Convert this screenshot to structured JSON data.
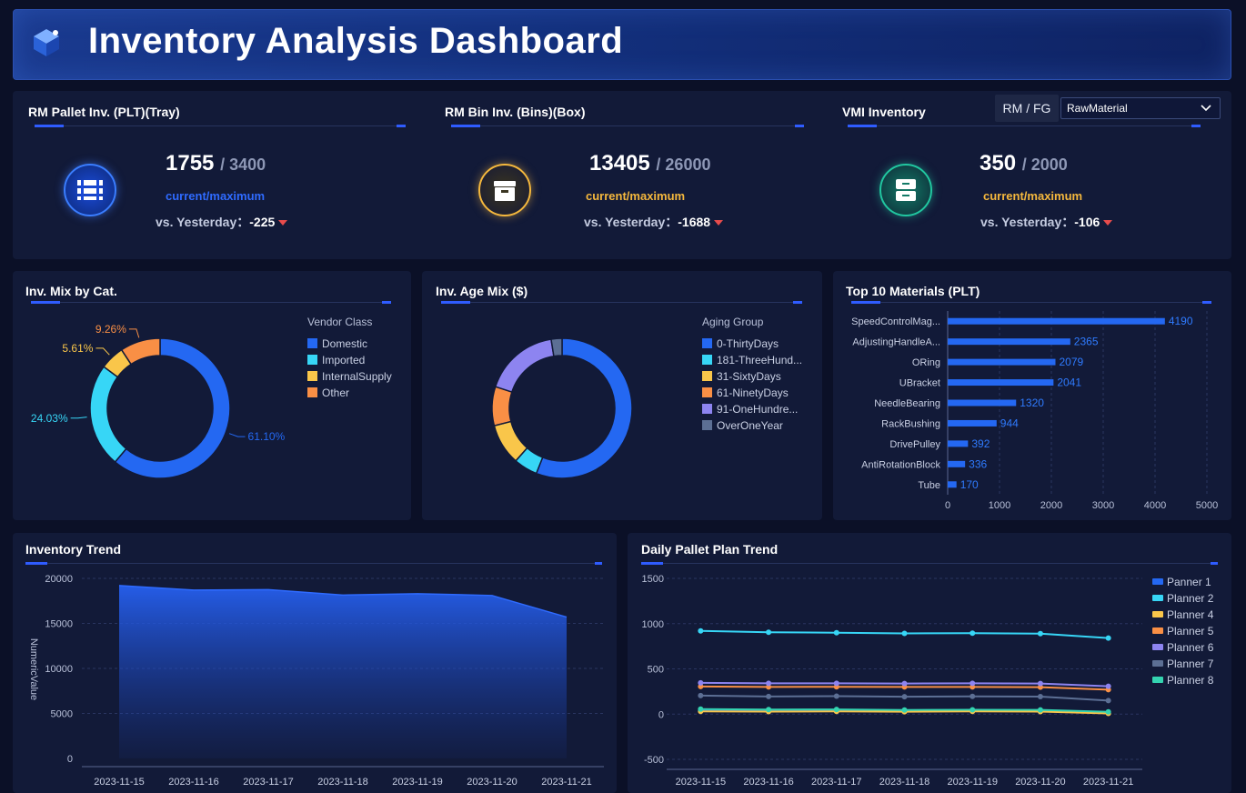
{
  "header": {
    "title": "Inventory Analysis Dashboard",
    "logo_icon": "cube-icon"
  },
  "kpis": [
    {
      "title": "RM Pallet Inv. (PLT)(Tray)",
      "current": "1755",
      "maximum": "/ 3400",
      "sub": "current/maximum",
      "vs_label": "vs. Yesterday：",
      "vs_value": "-225",
      "color": "#2f6bff",
      "icon": "pallet-icon"
    },
    {
      "title": "RM Bin Inv. (Bins)(Box)",
      "current": "13405",
      "maximum": "/ 26000",
      "sub": "current/maximum",
      "vs_label": "vs. Yesterday：",
      "vs_value": "-1688",
      "color": "#f5b83d",
      "icon": "box-icon"
    },
    {
      "title": "VMI Inventory",
      "current": "350",
      "maximum": "/ 2000",
      "sub": "current/maximum",
      "vs_label": "vs. Yesterday：",
      "vs_value": "-106",
      "color": "#21c7a0",
      "icon": "cabinet-icon"
    }
  ],
  "filter": {
    "label": "RM / FG",
    "selected": "RawMaterial"
  },
  "colors": {
    "blue": "#2468f2",
    "cyan": "#37d6f6",
    "yellow": "#f9c64a",
    "orange": "#f98f45",
    "purple": "#8d84f0",
    "slate": "#5c6f94",
    "teal": "#34d3b0"
  },
  "chart_data": [
    {
      "id": "mix",
      "type": "pie",
      "title": "Inv. Mix by Cat.",
      "legend_title": "Vendor Class",
      "labels": [
        "Domestic",
        "Imported",
        "InternalSupply",
        "Other"
      ],
      "values": [
        61.1,
        24.03,
        5.61,
        9.26
      ],
      "value_labels": [
        "61.10%",
        "24.03%",
        "5.61%",
        "9.26%"
      ],
      "colors": [
        "#2468f2",
        "#37d6f6",
        "#f9c64a",
        "#f98f45"
      ],
      "legend_placement": "top-right"
    },
    {
      "id": "age",
      "type": "pie",
      "title": "Inv. Age Mix ($)",
      "legend_title": "Aging Group",
      "labels": [
        "0-ThirtyDays",
        "181-ThreeHund...",
        "31-SixtyDays",
        "61-NinetyDays",
        "91-OneHundre...",
        "OverOneYear"
      ],
      "values": [
        56,
        5.5,
        9.5,
        9,
        17.5,
        2.5
      ],
      "colors": [
        "#2468f2",
        "#37d6f6",
        "#f9c64a",
        "#f98f45",
        "#8d84f0",
        "#5c6f94"
      ],
      "legend_placement": "top-right"
    },
    {
      "id": "top10",
      "type": "bar",
      "title": "Top 10 Materials (PLT)",
      "orientation": "horizontal",
      "categories": [
        "SpeedControlMag...",
        "AdjustingHandleA...",
        "ORing",
        "UBracket",
        "NeedleBearing",
        "RackBushing",
        "DrivePulley",
        "AntiRotationBlock",
        "Tube"
      ],
      "values": [
        4190,
        2365,
        2079,
        2041,
        1320,
        944,
        392,
        336,
        170
      ],
      "xlim": [
        0,
        5000
      ],
      "xticks": [
        "0",
        "1000",
        "2000",
        "3000",
        "4000",
        "5000"
      ],
      "color": "#2468f2"
    },
    {
      "id": "trend",
      "type": "area",
      "title": "Inventory Trend",
      "ylabel": "NumericValue",
      "x": [
        "2023-11-15",
        "2023-11-16",
        "2023-11-17",
        "2023-11-18",
        "2023-11-19",
        "2023-11-20",
        "2023-11-21"
      ],
      "values": [
        19200,
        18700,
        18750,
        18150,
        18300,
        18100,
        15700
      ],
      "ylim": [
        0,
        20000
      ],
      "yticks": [
        "20000",
        "15000",
        "10000",
        "5000",
        "0"
      ],
      "color": "#2468f2"
    },
    {
      "id": "plan",
      "type": "line",
      "title": "Daily Pallet Plan Trend",
      "x": [
        "2023-11-15",
        "2023-11-16",
        "2023-11-17",
        "2023-11-18",
        "2023-11-19",
        "2023-11-20",
        "2023-11-21"
      ],
      "ylim": [
        -500,
        1500
      ],
      "yticks": [
        "1500",
        "1000",
        "500",
        "0",
        "-500"
      ],
      "legend_placement": "top-right",
      "series": [
        {
          "name": "Panner 1",
          "color": "#2468f2",
          "values": [
            40,
            35,
            38,
            32,
            36,
            33,
            12
          ]
        },
        {
          "name": "Planner 2",
          "color": "#37d6f6",
          "values": [
            920,
            905,
            900,
            892,
            895,
            890,
            840
          ]
        },
        {
          "name": "Planner 4",
          "color": "#f9c64a",
          "values": [
            30,
            28,
            30,
            26,
            30,
            28,
            8
          ]
        },
        {
          "name": "Planner 5",
          "color": "#f98f45",
          "values": [
            305,
            300,
            302,
            300,
            300,
            298,
            270
          ]
        },
        {
          "name": "Planner 6",
          "color": "#8d84f0",
          "values": [
            345,
            340,
            340,
            338,
            340,
            338,
            308
          ]
        },
        {
          "name": "Planner 7",
          "color": "#5c6f94",
          "values": [
            205,
            195,
            198,
            192,
            196,
            194,
            150
          ]
        },
        {
          "name": "Planner 8",
          "color": "#34d3b0",
          "values": [
            55,
            50,
            52,
            45,
            48,
            46,
            25
          ]
        }
      ]
    }
  ]
}
